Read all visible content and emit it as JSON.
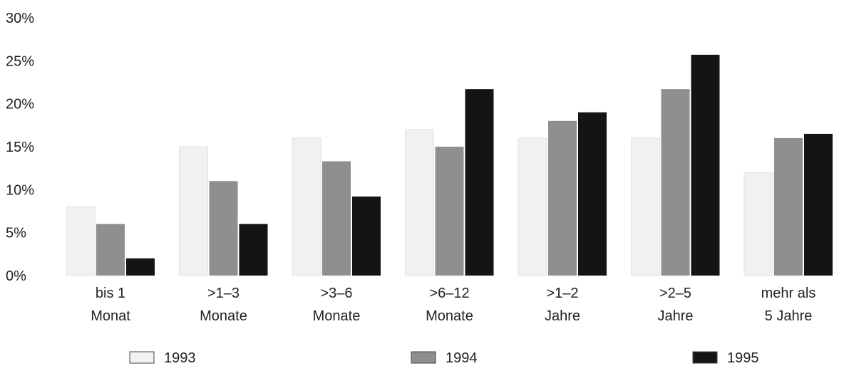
{
  "chart_data": {
    "type": "bar",
    "y_ticks": [
      "0%",
      "5%",
      "10%",
      "15%",
      "20%",
      "25%",
      "30%"
    ],
    "ylim": [
      0,
      30
    ],
    "grid": false,
    "legend_position": "bottom",
    "categories": [
      [
        "bis 1",
        "Monat"
      ],
      [
        ">1–3",
        "Monate"
      ],
      [
        ">3–6",
        "Monate"
      ],
      [
        ">6–12",
        "Monate"
      ],
      [
        ">1–2",
        "Jahre"
      ],
      [
        ">2–5",
        "Jahre"
      ],
      [
        "mehr als",
        "5 Jahre"
      ]
    ],
    "series": [
      {
        "name": "1993",
        "color": "#f1f1f1",
        "values": [
          8,
          15,
          16,
          17,
          16,
          16,
          12
        ]
      },
      {
        "name": "1994",
        "color": "#8f8f8f",
        "values": [
          6,
          11,
          13.3,
          15,
          18,
          21.7,
          16
        ]
      },
      {
        "name": "1995",
        "color": "#141414",
        "values": [
          2,
          6,
          9.2,
          21.7,
          19,
          25.7,
          16.5
        ]
      }
    ]
  }
}
